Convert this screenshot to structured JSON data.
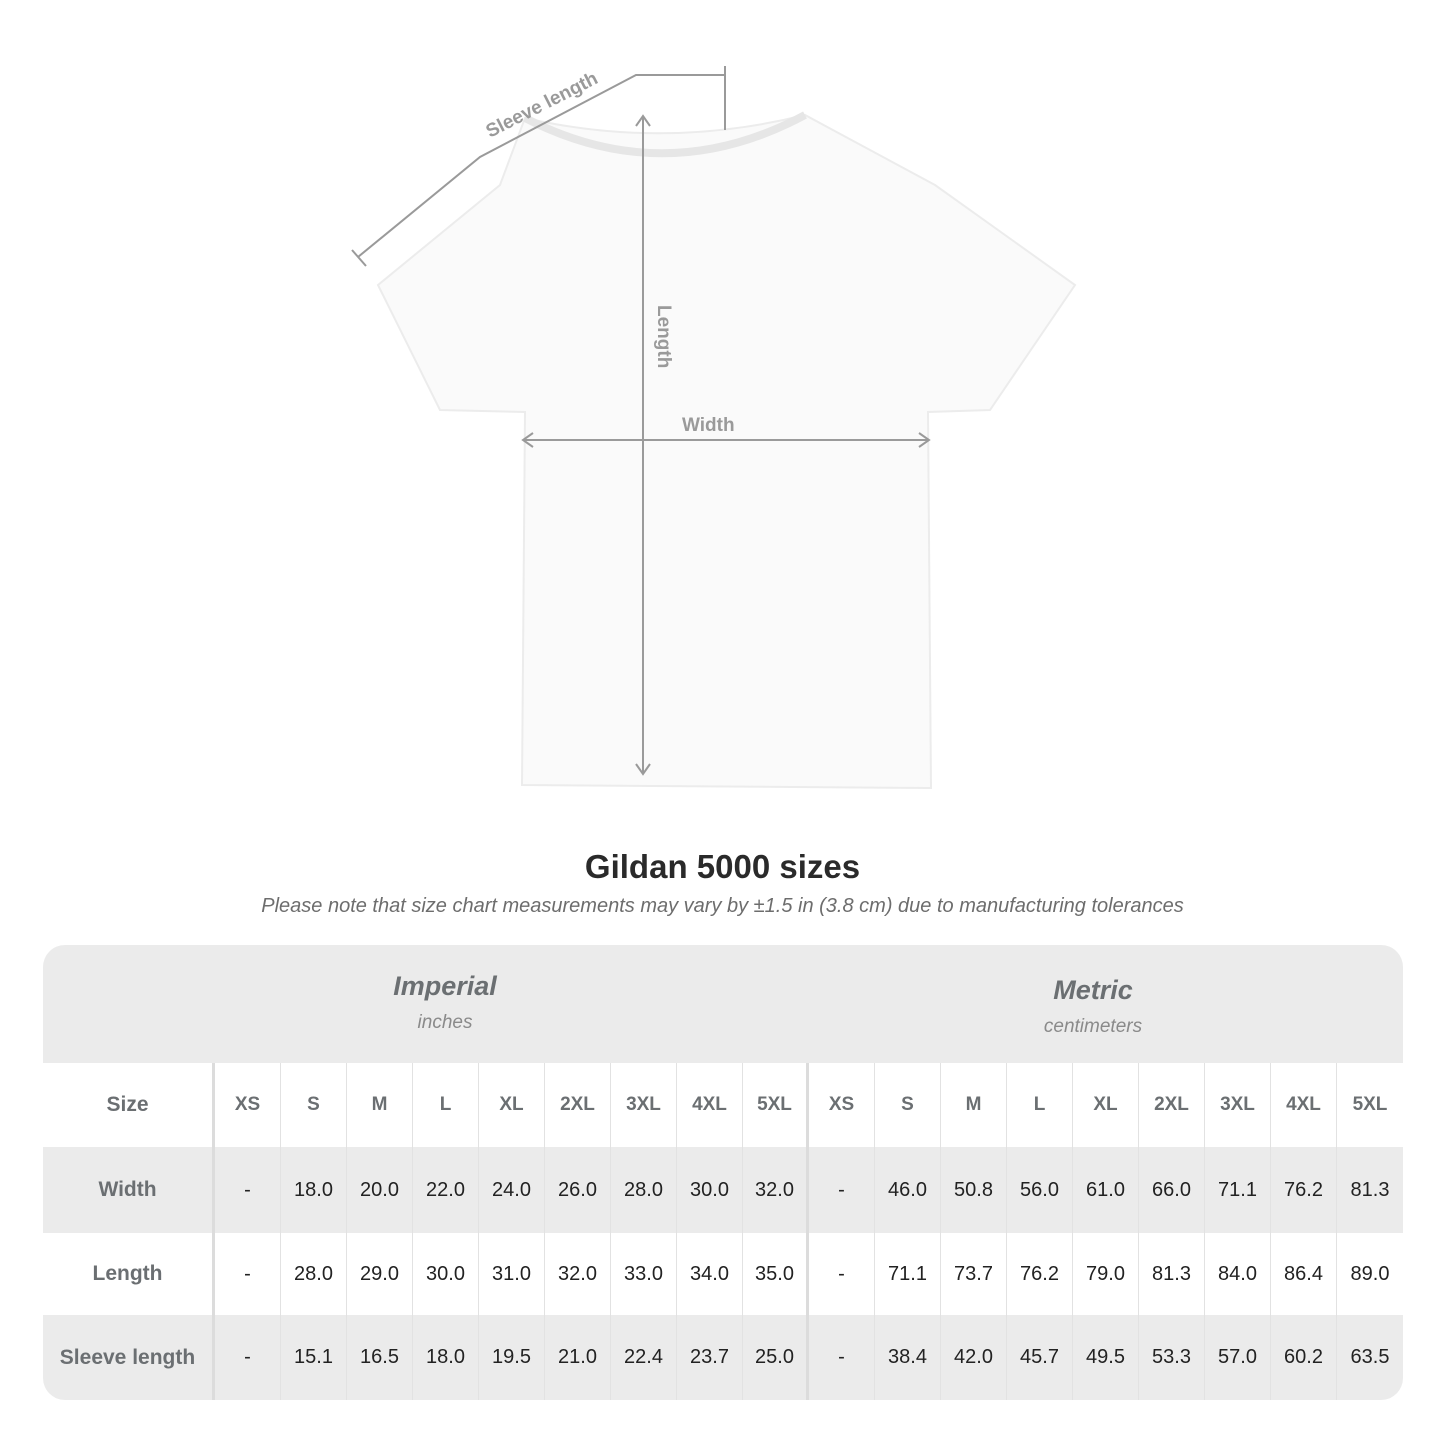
{
  "diagram": {
    "labels": {
      "sleeve": "Sleeve length",
      "length": "Length",
      "width": "Width"
    },
    "line_color": "#9a9a9a"
  },
  "title": "Gildan 5000 sizes",
  "note": "Please note that size chart measurements may vary by ±1.5 in (3.8 cm) due to manufacturing tolerances",
  "table": {
    "imperial": {
      "name": "Imperial",
      "unit": "inches"
    },
    "metric": {
      "name": "Metric",
      "unit": "centimeters"
    },
    "size_label": "Size",
    "sizes": [
      "XS",
      "S",
      "M",
      "L",
      "XL",
      "2XL",
      "3XL",
      "4XL",
      "5XL"
    ],
    "rows": [
      {
        "label": "Width",
        "imperial": [
          "-",
          "18.0",
          "20.0",
          "22.0",
          "24.0",
          "26.0",
          "28.0",
          "30.0",
          "32.0"
        ],
        "metric": [
          "-",
          "46.0",
          "50.8",
          "56.0",
          "61.0",
          "66.0",
          "71.1",
          "76.2",
          "81.3"
        ]
      },
      {
        "label": "Length",
        "imperial": [
          "-",
          "28.0",
          "29.0",
          "30.0",
          "31.0",
          "32.0",
          "33.0",
          "34.0",
          "35.0"
        ],
        "metric": [
          "-",
          "71.1",
          "73.7",
          "76.2",
          "79.0",
          "81.3",
          "84.0",
          "86.4",
          "89.0"
        ]
      },
      {
        "label": "Sleeve length",
        "imperial": [
          "-",
          "15.1",
          "16.5",
          "18.0",
          "19.5",
          "21.0",
          "22.4",
          "23.7",
          "25.0"
        ],
        "metric": [
          "-",
          "38.4",
          "42.0",
          "45.7",
          "49.5",
          "53.3",
          "57.0",
          "60.2",
          "63.5"
        ]
      }
    ]
  }
}
